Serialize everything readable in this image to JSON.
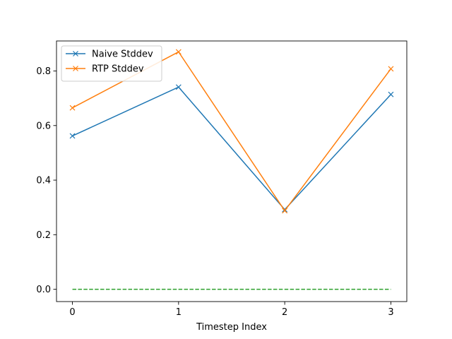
{
  "chart_data": {
    "type": "line",
    "title": "",
    "xlabel": "Timestep Index",
    "ylabel": "",
    "x": [
      0,
      1,
      2,
      3
    ],
    "xticks": [
      "0",
      "1",
      "2",
      "3"
    ],
    "yticks": [
      "0.0",
      "0.2",
      "0.4",
      "0.6",
      "0.8"
    ],
    "xlim": [
      -0.15,
      3.15
    ],
    "ylim": [
      -0.045,
      0.91
    ],
    "grid": false,
    "legend_position": "top-left",
    "series": [
      {
        "name": "Naive Stddev",
        "color": "#1f77b4",
        "marker": "x",
        "linestyle": "solid",
        "values": [
          0.562,
          0.741,
          0.292,
          0.714
        ]
      },
      {
        "name": "RTP Stddev",
        "color": "#ff7f0e",
        "marker": "x",
        "linestyle": "solid",
        "values": [
          0.665,
          0.87,
          0.288,
          0.808
        ]
      },
      {
        "name": "",
        "color": "#2ca02c",
        "marker": "none",
        "linestyle": "dashed",
        "values": [
          0.0,
          0.0,
          0.0,
          0.0
        ]
      }
    ]
  }
}
